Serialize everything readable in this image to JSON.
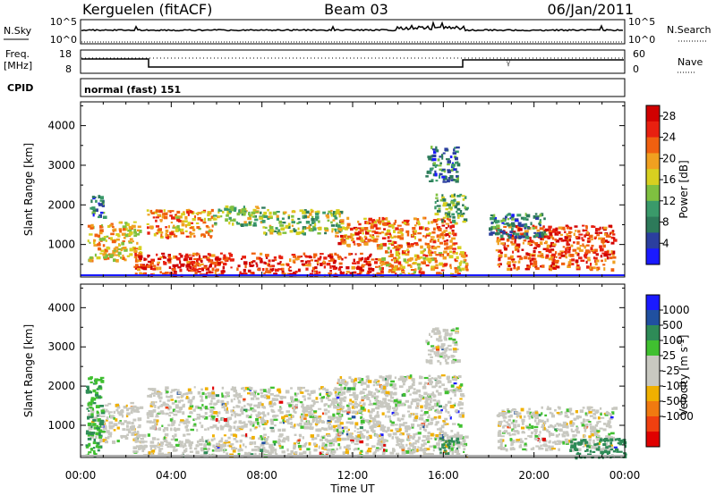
{
  "header": {
    "station": "Kerguelen (fitACF)",
    "beam": "Beam 03",
    "date": "06/Jan/2011"
  },
  "top_panels": {
    "nsky_label": "N.Sky",
    "nsearch_label": "N.Search",
    "freq_label_line1": "Freq.",
    "freq_label_line2": "[MHz]",
    "nave_label": "Nave",
    "cpid_label": "CPID",
    "cpid_value": "normal (fast) 151",
    "noise_ticks": [
      "10^5",
      "10^0"
    ],
    "freq_ticks": [
      "18",
      "8"
    ],
    "nave_ticks": [
      "60",
      "0"
    ]
  },
  "colors": {
    "power_scale": [
      "#1a1aff",
      "#2b3f9f",
      "#2d7a5a",
      "#3a9a6a",
      "#7fc040",
      "#d7d020",
      "#f0a020",
      "#f06010",
      "#e82010",
      "#d00000"
    ],
    "velocity_scale": [
      "#e00000",
      "#f04010",
      "#f07a10",
      "#f0b000",
      "#c8c8c0",
      "#c8c8c0",
      "#40c030",
      "#2e8b57",
      "#2050a0",
      "#1a1aff"
    ]
  },
  "chart_data": [
    {
      "type": "heatmap",
      "title": "",
      "xlabel": "Time UT",
      "ylabel": "Slant Range [km]",
      "xlim": [
        0,
        24
      ],
      "ylim": [
        180,
        4600
      ],
      "x_ticks": [
        "00:00",
        "04:00",
        "08:00",
        "12:00",
        "16:00",
        "20:00",
        "00:00"
      ],
      "y_ticks": [
        "1000",
        "2000",
        "3000",
        "4000"
      ],
      "colorbar": {
        "label": "Power [dB]",
        "ticks": [
          "4",
          "8",
          "12",
          "16",
          "20",
          "24",
          "28"
        ],
        "range": [
          0,
          30
        ]
      },
      "echo_regions": [
        {
          "t0": 0.3,
          "t1": 2.6,
          "r0": 600,
          "r1": 1600,
          "level": 18
        },
        {
          "t0": 0.4,
          "t1": 1.0,
          "r0": 1700,
          "r1": 2300,
          "level": 8
        },
        {
          "t0": 2.9,
          "t1": 5.8,
          "r0": 1200,
          "r1": 1900,
          "level": 20
        },
        {
          "t0": 5.8,
          "t1": 8.0,
          "r0": 1500,
          "r1": 2000,
          "level": 14
        },
        {
          "t0": 8.0,
          "t1": 11.5,
          "r0": 1300,
          "r1": 1900,
          "level": 13
        },
        {
          "t0": 11.2,
          "t1": 16.5,
          "r0": 1000,
          "r1": 1700,
          "level": 22
        },
        {
          "t0": 15.6,
          "t1": 17.0,
          "r0": 1600,
          "r1": 2300,
          "level": 12
        },
        {
          "t0": 15.2,
          "t1": 16.6,
          "r0": 2600,
          "r1": 3500,
          "level": 8
        },
        {
          "t0": 2.3,
          "t1": 13.0,
          "r0": 250,
          "r1": 800,
          "level": 26
        },
        {
          "t0": 13.0,
          "t1": 17.0,
          "r0": 250,
          "r1": 1000,
          "level": 20
        },
        {
          "t0": 18.3,
          "t1": 23.5,
          "r0": 400,
          "r1": 1500,
          "level": 24
        },
        {
          "t0": 18.0,
          "t1": 20.5,
          "r0": 1200,
          "r1": 1800,
          "level": 8
        }
      ]
    },
    {
      "type": "heatmap",
      "title": "",
      "xlabel": "Time UT",
      "ylabel": "Slant Range [km]",
      "xlim": [
        0,
        24
      ],
      "ylim": [
        180,
        4600
      ],
      "x_ticks": [
        "00:00",
        "04:00",
        "08:00",
        "12:00",
        "16:00",
        "20:00",
        "00:00"
      ],
      "y_ticks": [
        "1000",
        "2000",
        "3000",
        "4000"
      ],
      "colorbar": {
        "label": "Velocity [m s-1]",
        "ticks": [
          "1000",
          "500",
          "100",
          "25",
          "-25",
          "-100",
          "-500",
          "-1000"
        ]
      },
      "echo_regions": [
        {
          "t0": 0.3,
          "t1": 2.6,
          "r0": 600,
          "r1": 1600,
          "level": 0
        },
        {
          "t0": 0.2,
          "t1": 0.9,
          "r0": 250,
          "r1": 2300,
          "level": 100
        },
        {
          "t0": 2.9,
          "t1": 11.5,
          "r0": 900,
          "r1": 2000,
          "level": 0
        },
        {
          "t0": 11.2,
          "t1": 16.8,
          "r0": 700,
          "r1": 2300,
          "level": 0
        },
        {
          "t0": 15.2,
          "t1": 16.6,
          "r0": 2600,
          "r1": 3500,
          "level": 0
        },
        {
          "t0": 2.3,
          "t1": 17.0,
          "r0": 250,
          "r1": 800,
          "level": 0
        },
        {
          "t0": 18.3,
          "t1": 23.5,
          "r0": 400,
          "r1": 1500,
          "level": 0
        },
        {
          "t0": 21.5,
          "t1": 24.0,
          "r0": 200,
          "r1": 700,
          "level": 300
        },
        {
          "t0": 15.8,
          "t1": 16.6,
          "r0": 300,
          "r1": 700,
          "level": 150
        }
      ]
    }
  ]
}
